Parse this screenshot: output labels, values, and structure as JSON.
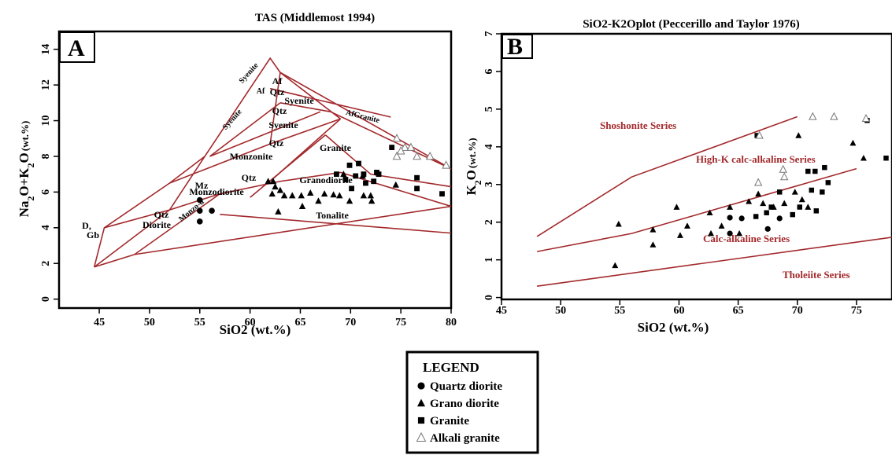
{
  "colors": {
    "boundary": "#a3292c",
    "marker": "#000000",
    "hollow_marker": "#777777"
  },
  "chart_data": [
    {
      "type": "scatter",
      "panel": "A",
      "title": "TAS (Middlemost 1994)",
      "xlabel": "SiO2 (wt.%)",
      "ylabel_parts": [
        "Na",
        "2",
        "O+K",
        "2",
        "O",
        "(wt.%)"
      ],
      "xlim": [
        41,
        80
      ],
      "ylim": [
        -0.5,
        15
      ],
      "xticks": [
        "45",
        "50",
        "55",
        "60",
        "65",
        "70",
        "75",
        "80"
      ],
      "yticks": [
        "0",
        "2",
        "4",
        "6",
        "8",
        "10",
        "12",
        "14"
      ],
      "field_labels": [
        {
          "text": "Syenite"
        },
        {
          "text": "Af"
        },
        {
          "text": "Af"
        },
        {
          "text": "Qtz"
        },
        {
          "text": "Syenite"
        },
        {
          "text": "Qtz"
        },
        {
          "text": "Syenite"
        },
        {
          "text": "Syenite"
        },
        {
          "text": "AfGranite"
        },
        {
          "text": "Qtz"
        },
        {
          "text": "Monzonite"
        },
        {
          "text": "Granite"
        },
        {
          "text": "Mz"
        },
        {
          "text": "Qtz"
        },
        {
          "text": "Granodiorite"
        },
        {
          "text": "Monzo-d"
        },
        {
          "text": "Monzodiorite"
        },
        {
          "text": "D,"
        },
        {
          "text": "Gb"
        },
        {
          "text": "Qtz"
        },
        {
          "text": "Diorite"
        },
        {
          "text": "Tonalite"
        }
      ],
      "series": [
        {
          "name": "Quartz diorite",
          "marker": "circle",
          "points": [
            [
              55,
              5.55
            ],
            [
              55,
              4.95
            ],
            [
              56.2,
              4.95
            ],
            [
              55,
              4.35
            ]
          ]
        },
        {
          "name": "Grano diorite",
          "marker": "triangle",
          "points": [
            [
              61.8,
              6.6
            ],
            [
              62.5,
              6.3
            ],
            [
              62.2,
              5.9
            ],
            [
              63,
              6.1
            ],
            [
              63.4,
              5.8
            ],
            [
              64.2,
              5.8
            ],
            [
              65.1,
              5.8
            ],
            [
              66,
              5.95
            ],
            [
              66.8,
              5.5
            ],
            [
              67.4,
              5.9
            ],
            [
              68.3,
              5.85
            ],
            [
              68.9,
              5.8
            ],
            [
              69.9,
              5.5
            ],
            [
              71.3,
              5.8
            ],
            [
              72,
              5.8
            ],
            [
              72.1,
              5.5
            ],
            [
              74.5,
              6.4
            ],
            [
              71.2,
              6.9
            ],
            [
              69.3,
              7.0
            ],
            [
              62.8,
              4.9
            ],
            [
              65.2,
              5.2
            ],
            [
              62.3,
              6.6
            ]
          ]
        },
        {
          "name": "Granite",
          "marker": "square",
          "points": [
            [
              69.9,
              7.5
            ],
            [
              70.8,
              7.6
            ],
            [
              72.6,
              7.1
            ],
            [
              72.8,
              7.0
            ],
            [
              71.3,
              7.0
            ],
            [
              70.5,
              6.9
            ],
            [
              68.6,
              7.0
            ],
            [
              69.5,
              6.7
            ],
            [
              71.5,
              6.5
            ],
            [
              72.3,
              6.6
            ],
            [
              70.1,
              6.2
            ],
            [
              74.1,
              8.5
            ],
            [
              76.6,
              6.8
            ],
            [
              76.6,
              6.2
            ],
            [
              79.1,
              5.9
            ]
          ]
        },
        {
          "name": "Alkali granite",
          "marker": "open-triangle",
          "points": [
            [
              74.6,
              9.0
            ],
            [
              75.4,
              8.5
            ],
            [
              76,
              8.5
            ],
            [
              74.6,
              8.0
            ],
            [
              76.6,
              8.0
            ],
            [
              77.9,
              8.0
            ],
            [
              79.5,
              7.5
            ],
            [
              75,
              8.3
            ]
          ]
        }
      ]
    },
    {
      "type": "scatter",
      "panel": "B",
      "title": "SiO2-K2Oplot (Peccerillo and Taylor 1976)",
      "xlabel": "SiO2 (wt.%)",
      "ylabel_parts": [
        "K",
        "2",
        "O",
        "(wt.%)"
      ],
      "xlim": [
        45,
        78
      ],
      "ylim": [
        -0.05,
        7
      ],
      "xticks": [
        "45",
        "50",
        "55",
        "60",
        "65",
        "70",
        "75"
      ],
      "yticks": [
        "0",
        "1",
        "2",
        "3",
        "4",
        "5",
        "6",
        "7"
      ],
      "series_labels": [
        "Shoshonite Series",
        "High-K calc-alkaline Series",
        "Calc-alkaline Series",
        "Tholeiite Series"
      ],
      "series": [
        {
          "name": "Quartz diorite",
          "marker": "circle",
          "points": [
            [
              64.3,
              2.12
            ],
            [
              64.3,
              1.7
            ],
            [
              65.3,
              2.1
            ],
            [
              67.5,
              1.82
            ],
            [
              68.5,
              2.1
            ]
          ]
        },
        {
          "name": "Grano diorite",
          "marker": "triangle",
          "points": [
            [
              54.6,
              0.85
            ],
            [
              54.9,
              1.95
            ],
            [
              57.8,
              1.8
            ],
            [
              57.8,
              1.4
            ],
            [
              59.8,
              2.4
            ],
            [
              60.1,
              1.65
            ],
            [
              60.7,
              1.9
            ],
            [
              62.6,
              2.25
            ],
            [
              62.7,
              1.7
            ],
            [
              63.6,
              1.9
            ],
            [
              64.3,
              2.4
            ],
            [
              65.1,
              1.7
            ],
            [
              66.7,
              2.75
            ],
            [
              67.1,
              2.5
            ],
            [
              68,
              2.4
            ],
            [
              68.9,
              2.5
            ],
            [
              69.8,
              2.8
            ],
            [
              70.4,
              2.6
            ],
            [
              70.9,
              2.4
            ],
            [
              74.7,
              4.1
            ],
            [
              75.6,
              3.7
            ],
            [
              70.1,
              4.3
            ],
            [
              65.9,
              2.55
            ]
          ]
        },
        {
          "name": "Granite",
          "marker": "square",
          "points": [
            [
              66.6,
              4.3
            ],
            [
              68.5,
              2.8
            ],
            [
              70.9,
              3.35
            ],
            [
              71.5,
              3.35
            ],
            [
              72.3,
              3.45
            ],
            [
              72.6,
              3.05
            ],
            [
              71.2,
              2.85
            ],
            [
              72.1,
              2.8
            ],
            [
              70.2,
              2.4
            ],
            [
              69.6,
              2.2
            ],
            [
              67.8,
              2.4
            ],
            [
              67.4,
              2.25
            ],
            [
              66.5,
              2.15
            ],
            [
              71.6,
              2.3
            ],
            [
              75.9,
              4.7
            ],
            [
              77.5,
              3.7
            ]
          ]
        },
        {
          "name": "Alkali granite",
          "marker": "open-triangle",
          "points": [
            [
              71.3,
              4.8
            ],
            [
              73.1,
              4.8
            ],
            [
              75.8,
              4.75
            ],
            [
              68.8,
              3.4
            ],
            [
              68.9,
              3.2
            ],
            [
              66.7,
              3.05
            ],
            [
              66.8,
              4.3
            ]
          ]
        }
      ]
    }
  ],
  "legend": {
    "title": "LEGEND",
    "items": [
      {
        "label": "Quartz diorite",
        "marker": "circle"
      },
      {
        "label": "Grano diorite",
        "marker": "triangle"
      },
      {
        "label": "Granite",
        "marker": "square"
      },
      {
        "label": "Alkali granite",
        "marker": "open-triangle"
      }
    ]
  }
}
